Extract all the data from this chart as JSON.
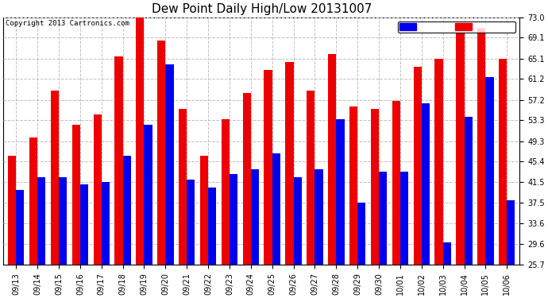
{
  "title": "Dew Point Daily High/Low 20131007",
  "copyright": "Copyright 2013 Cartronics.com",
  "yticks": [
    25.7,
    29.6,
    33.6,
    37.5,
    41.5,
    45.4,
    49.3,
    53.3,
    57.2,
    61.2,
    65.1,
    69.1,
    73.0
  ],
  "ymin": 25.7,
  "ymax": 73.0,
  "dates": [
    "09/13",
    "09/14",
    "09/15",
    "09/16",
    "09/17",
    "09/18",
    "09/19",
    "09/20",
    "09/21",
    "09/22",
    "09/23",
    "09/24",
    "09/25",
    "09/26",
    "09/27",
    "09/28",
    "09/29",
    "09/30",
    "10/01",
    "10/02",
    "10/03",
    "10/04",
    "10/05",
    "10/06"
  ],
  "low": [
    40.0,
    42.5,
    42.5,
    41.0,
    41.5,
    46.5,
    52.5,
    64.0,
    42.0,
    40.5,
    43.0,
    44.0,
    47.0,
    42.5,
    44.0,
    53.5,
    37.5,
    43.5,
    43.5,
    56.5,
    30.0,
    54.0,
    61.5,
    38.0
  ],
  "high": [
    46.5,
    50.0,
    59.0,
    52.5,
    54.5,
    65.5,
    74.0,
    68.5,
    55.5,
    46.5,
    53.5,
    58.5,
    63.0,
    64.5,
    59.0,
    66.0,
    56.0,
    55.5,
    57.0,
    63.5,
    65.0,
    70.0,
    71.0,
    65.0
  ],
  "bar_width": 0.38,
  "low_color": "#0000ee",
  "high_color": "#ee0000",
  "bg_color": "#ffffff",
  "grid_color": "#c0c0c0",
  "title_fontsize": 11,
  "tick_fontsize": 7,
  "copyright_fontsize": 6.5,
  "legend_fontsize": 7.5
}
